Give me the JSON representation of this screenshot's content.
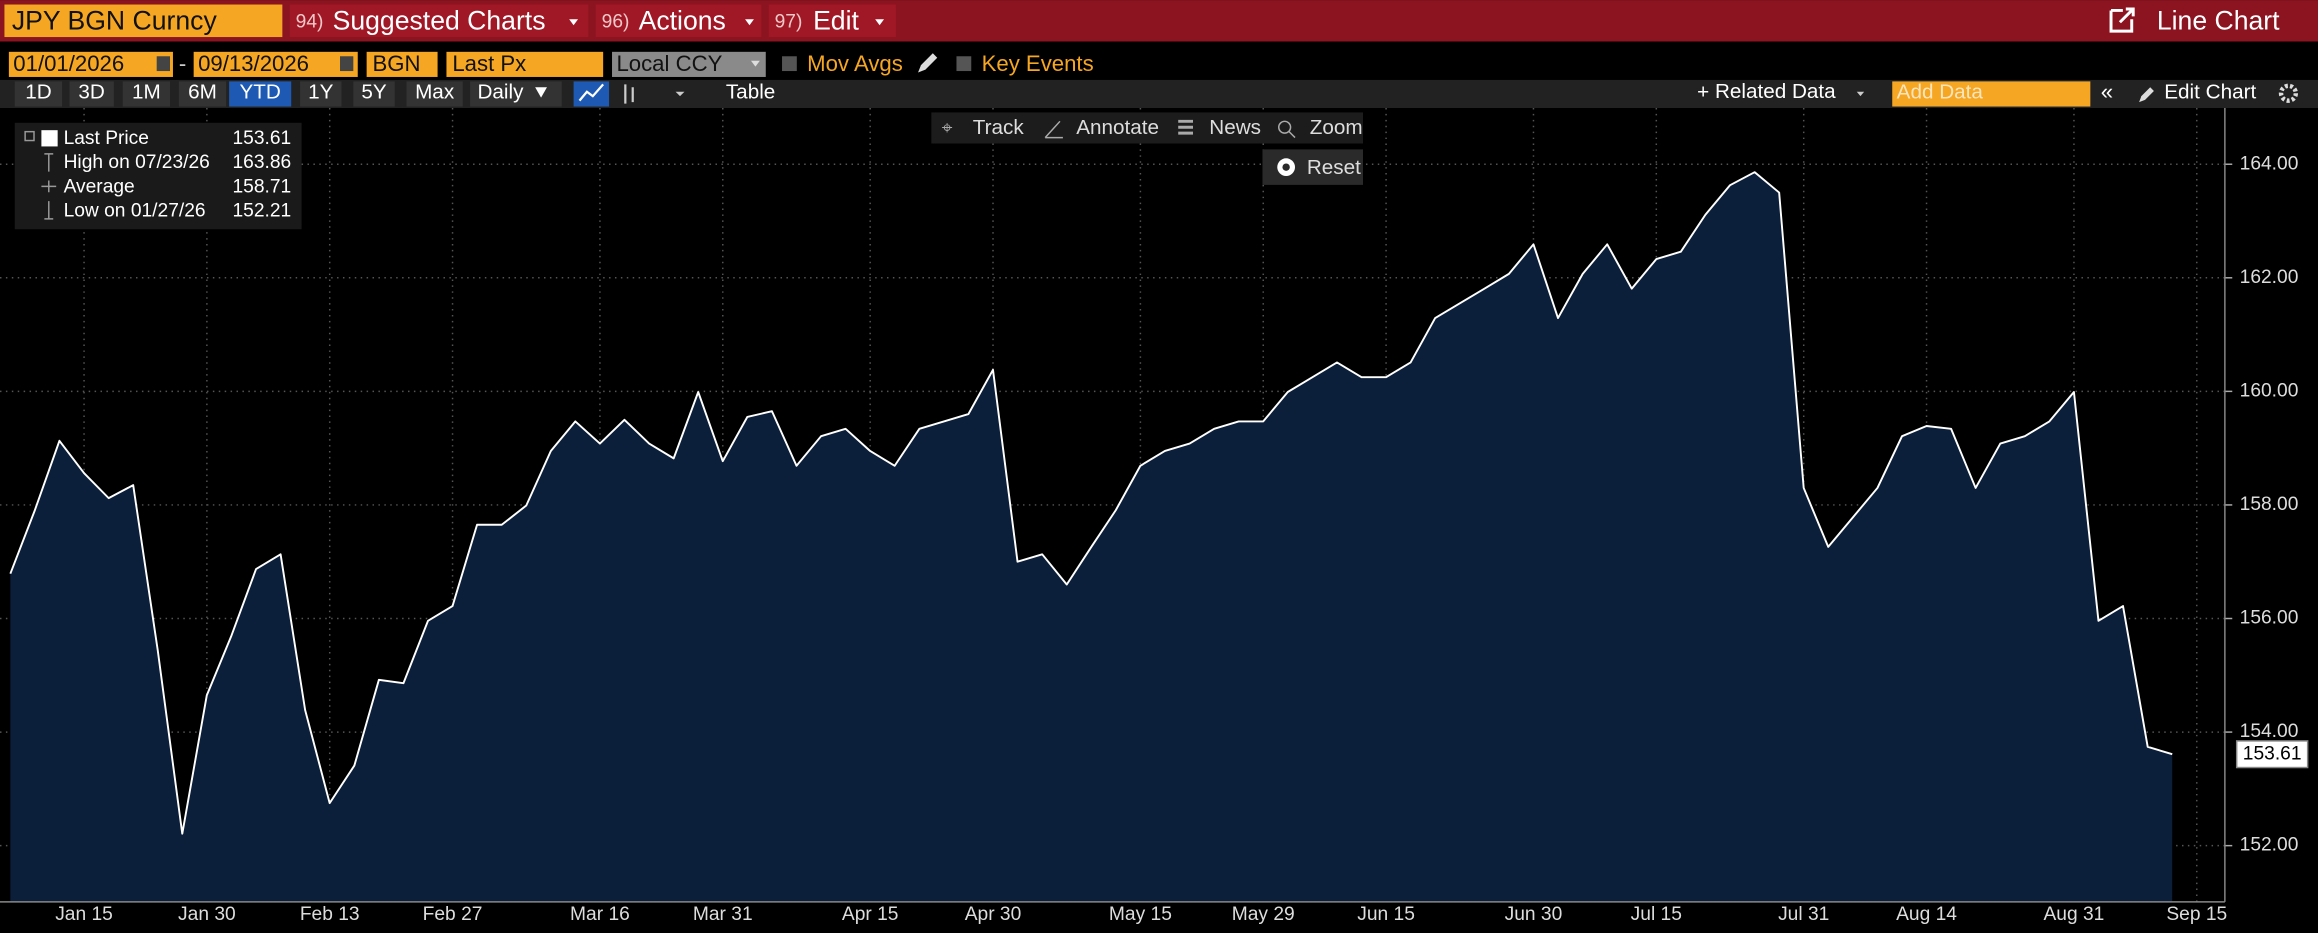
{
  "toolbar": {
    "security": "JPY BGN Curncy",
    "menus": [
      {
        "key": "94)",
        "label": "Suggested Charts"
      },
      {
        "key": "96)",
        "label": "Actions"
      },
      {
        "key": "97)",
        "label": "Edit"
      }
    ],
    "chart_type": "Line Chart"
  },
  "settings": {
    "start_date": "01/01/2026",
    "end_date": "09/13/2026",
    "source": "BGN",
    "field": "Last Px",
    "currency": "Local CCY",
    "mov_avgs": "Mov Avgs",
    "key_events": "Key Events"
  },
  "periods": [
    "1D",
    "3D",
    "1M",
    "6M",
    "YTD",
    "1Y",
    "5Y",
    "Max"
  ],
  "active_period": "YTD",
  "frequency": "Daily",
  "table": "Table",
  "related_data": "Related Data",
  "add_data": "Add Data",
  "edit_chart": "Edit Chart",
  "tools": [
    "Track",
    "Annotate",
    "News",
    "Zoom"
  ],
  "reset": "Reset",
  "legend": [
    {
      "label": "Last Price",
      "value": 153.61
    },
    {
      "label": "High on 07/23/26",
      "value": 163.86
    },
    {
      "label": "Average",
      "value": 158.71
    },
    {
      "label": "Low on 01/27/26",
      "value": 152.21
    }
  ],
  "chart_data": {
    "type": "line",
    "categories": [
      null,
      null,
      null,
      "Jan 15",
      null,
      null,
      null,
      null,
      "Jan 30",
      null,
      null,
      null,
      null,
      "Feb 13",
      null,
      null,
      null,
      null,
      "Feb 27",
      null,
      null,
      null,
      null,
      null,
      "Mar 16",
      null,
      null,
      null,
      null,
      "Mar 31",
      null,
      null,
      null,
      null,
      null,
      "Apr 15",
      null,
      null,
      null,
      null,
      "Apr 30",
      null,
      null,
      null,
      null,
      null,
      "May 15",
      null,
      null,
      null,
      null,
      "May 29",
      null,
      null,
      null,
      null,
      "Jun 15",
      null,
      null,
      null,
      null,
      null,
      "Jun 30",
      null,
      null,
      null,
      null,
      "Jul 15",
      null,
      null,
      null,
      null,
      null,
      "Jul 31",
      null,
      null,
      null,
      null,
      "Aug 14",
      null,
      null,
      null,
      null,
      null,
      "Aug 31",
      null,
      null,
      null,
      null,
      "Sep 15"
    ],
    "series": [
      {
        "name": "Last Price",
        "color": "#ffffff",
        "fill": "#0b1e3a",
        "values": [
          156.79,
          157.91,
          159.13,
          158.56,
          158.12,
          158.35,
          155.44,
          152.21,
          154.65,
          155.7,
          156.87,
          157.13,
          154.39,
          152.75,
          153.41,
          154.92,
          154.86,
          155.96,
          156.22,
          157.65,
          157.65,
          157.99,
          158.95,
          159.47,
          159.08,
          159.5,
          159.08,
          158.82,
          159.99,
          158.77,
          159.55,
          159.65,
          158.69,
          159.21,
          159.34,
          158.95,
          158.69,
          159.34,
          159.47,
          159.6,
          160.38,
          157.0,
          157.13,
          156.6,
          157.26,
          157.91,
          158.69,
          158.95,
          159.08,
          159.34,
          159.47,
          159.47,
          159.99,
          160.25,
          160.51,
          160.25,
          160.25,
          160.51,
          161.29,
          161.55,
          161.81,
          162.07,
          162.59,
          161.29,
          162.07,
          162.59,
          161.81,
          162.33,
          162.46,
          163.11,
          163.63,
          163.86,
          163.5,
          158.3,
          157.26,
          157.78,
          158.3,
          159.21,
          159.39,
          159.34,
          158.3,
          159.08,
          159.21,
          159.47,
          159.99,
          155.96,
          156.22,
          153.74,
          153.61,
          null
        ]
      }
    ],
    "ylim": [
      151.01,
      164.99
    ],
    "yticks": [
      {
        "value": 152,
        "label": "152.00"
      },
      {
        "value": 154,
        "label": "154.00"
      },
      {
        "value": 156,
        "label": "156.00"
      },
      {
        "value": 158,
        "label": "158.00"
      },
      {
        "value": 160,
        "label": "160.00"
      },
      {
        "value": 162,
        "label": "162.00"
      },
      {
        "value": 164,
        "label": "164.00"
      }
    ],
    "grid": true
  }
}
